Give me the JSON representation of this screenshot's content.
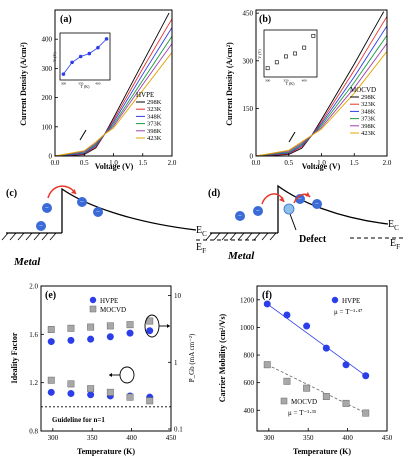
{
  "colors": {
    "hvpe_marker": "#2c3ee8",
    "mocvd_marker": "#a8a8a8",
    "arrow": "#e8392c",
    "electron": "#3a6bd6",
    "defect": "#8cc0e8",
    "curves": [
      "#000000",
      "#e8312a",
      "#2c3ee8",
      "#1a9a3a",
      "#a23fb0",
      "#e0a400"
    ]
  },
  "chart_data": [
    {
      "id": "a",
      "type": "line",
      "panel_label": "(a)",
      "xlabel": "Voltage (V)",
      "ylabel": "Current Density (A/cm²)",
      "xlim": [
        0,
        2.0
      ],
      "ylim": [
        0,
        500
      ],
      "xticks": [
        "0.0",
        "0.5",
        "1.0",
        "1.5",
        "2.0"
      ],
      "yticks": [
        "0",
        "100",
        "200",
        "300",
        "400"
      ],
      "legend_title": "HVPE",
      "series": [
        {
          "name": "298K",
          "x": [
            0,
            0.5,
            0.7,
            0.85,
            1.0,
            1.5,
            1.95
          ],
          "y": [
            0,
            5,
            28,
            75,
            130,
            320,
            490
          ]
        },
        {
          "name": "323K",
          "x": [
            0,
            0.5,
            0.7,
            0.85,
            1.0,
            1.5,
            2.0
          ],
          "y": [
            0,
            7,
            32,
            75,
            122,
            300,
            470
          ]
        },
        {
          "name": "348K",
          "x": [
            0,
            0.5,
            0.7,
            0.85,
            1.0,
            1.5,
            2.0
          ],
          "y": [
            0,
            9,
            36,
            75,
            115,
            280,
            440
          ]
        },
        {
          "name": "373K",
          "x": [
            0,
            0.5,
            0.7,
            0.85,
            1.0,
            1.5,
            2.0
          ],
          "y": [
            0,
            12,
            40,
            75,
            108,
            260,
            410
          ]
        },
        {
          "name": "398K",
          "x": [
            0,
            0.5,
            0.7,
            0.85,
            1.0,
            1.5,
            2.0
          ],
          "y": [
            0,
            15,
            44,
            75,
            102,
            245,
            385
          ]
        },
        {
          "name": "423K",
          "x": [
            0,
            0.5,
            0.7,
            0.85,
            1.0,
            1.5,
            2.0
          ],
          "y": [
            0,
            18,
            48,
            75,
            96,
            225,
            355
          ]
        }
      ],
      "inset": {
        "xlabel": "T (K)",
        "ylabel": "V (V)",
        "x": [
          300,
          325,
          350,
          375,
          400,
          425
        ],
        "y": [
          0.62,
          0.66,
          0.68,
          0.69,
          0.71,
          0.74
        ],
        "xlim": [
          290,
          435
        ],
        "ylim": [
          0.6,
          0.76
        ],
        "xticks": [
          "300",
          "350",
          "400"
        ]
      }
    },
    {
      "id": "b",
      "type": "line",
      "panel_label": "(b)",
      "xlabel": "Voltage (V)",
      "ylabel": "Current Density (A/cm²)",
      "xlim": [
        0,
        2.0
      ],
      "ylim": [
        0,
        460
      ],
      "xticks": [
        "0.0",
        "0.5",
        "1.0",
        "1.5",
        "2.0"
      ],
      "yticks": [
        "0",
        "150",
        "300",
        "450"
      ],
      "legend_title": "MOCVD",
      "series": [
        {
          "name": "298K",
          "x": [
            0,
            0.5,
            0.7,
            0.85,
            1.0,
            1.5,
            1.95
          ],
          "y": [
            0,
            5,
            25,
            65,
            115,
            290,
            455
          ]
        },
        {
          "name": "323K",
          "x": [
            0,
            0.5,
            0.7,
            0.85,
            1.0,
            1.5,
            2.0
          ],
          "y": [
            0,
            7,
            29,
            65,
            108,
            270,
            440
          ]
        },
        {
          "name": "348K",
          "x": [
            0,
            0.5,
            0.7,
            0.85,
            1.0,
            1.5,
            2.0
          ],
          "y": [
            0,
            9,
            33,
            65,
            102,
            250,
            410
          ]
        },
        {
          "name": "373K",
          "x": [
            0,
            0.5,
            0.7,
            0.85,
            1.0,
            1.5,
            2.0
          ],
          "y": [
            0,
            12,
            37,
            65,
            96,
            232,
            380
          ]
        },
        {
          "name": "398K",
          "x": [
            0,
            0.5,
            0.7,
            0.85,
            1.0,
            1.5,
            2.0
          ],
          "y": [
            0,
            15,
            41,
            65,
            90,
            215,
            355
          ]
        },
        {
          "name": "423K",
          "x": [
            0,
            0.5,
            0.7,
            0.85,
            1.0,
            1.5,
            2.0
          ],
          "y": [
            0,
            18,
            45,
            65,
            85,
            198,
            330
          ]
        }
      ],
      "inset": {
        "xlabel": "T (K)",
        "ylabel": "V (V)",
        "x": [
          300,
          325,
          350,
          375,
          400,
          425
        ],
        "y": [
          0.63,
          0.65,
          0.67,
          0.68,
          0.7,
          0.74
        ],
        "xlim": [
          290,
          435
        ],
        "ylim": [
          0.6,
          0.76
        ],
        "xticks": [
          "300",
          "350",
          "400"
        ]
      }
    },
    {
      "id": "e",
      "type": "scatter",
      "panel_label": "(e)",
      "xlabel": "Temperature (K)",
      "ylabel": "Ideality Factor",
      "ylabel_right": "P_Gb (mA cm⁻²)",
      "xlim": [
        285,
        450
      ],
      "ylim": [
        0.8,
        2.0
      ],
      "xticks": [
        "300",
        "350",
        "400",
        "450"
      ],
      "yticks": [
        "0.8",
        "1.2",
        "1.6",
        "2.0"
      ],
      "yticks_right": [
        "0.1",
        "1",
        "10"
      ],
      "legend": [
        "HVPE",
        "MOCVD"
      ],
      "guideline_label": "Guideline for n=1",
      "series": [
        {
          "name": "HVPE",
          "marker": "circle",
          "x": [
            298,
            323,
            348,
            373,
            398,
            423
          ],
          "y": [
            1.54,
            1.55,
            1.56,
            1.58,
            1.61,
            1.63
          ]
        },
        {
          "name": "MOCVD",
          "marker": "square",
          "x": [
            298,
            323,
            348,
            373,
            398,
            423
          ],
          "y": [
            1.64,
            1.65,
            1.66,
            1.67,
            1.68,
            1.71
          ]
        },
        {
          "name": "HVPE",
          "marker": "circle",
          "x": [
            298,
            323,
            348,
            373,
            398,
            423
          ],
          "y": [
            1.12,
            1.11,
            1.1,
            1.09,
            1.09,
            1.08
          ]
        },
        {
          "name": "MOCVD",
          "marker": "square",
          "x": [
            298,
            323,
            348,
            373,
            398,
            423
          ],
          "y": [
            1.22,
            1.19,
            1.15,
            1.12,
            1.08,
            1.05
          ]
        }
      ]
    },
    {
      "id": "f",
      "type": "scatter",
      "panel_label": "(f)",
      "xlabel": "Temperature (K)",
      "ylabel": "Carrier Mobility (cm²/Vs)",
      "xlim": [
        285,
        450
      ],
      "ylim": [
        250,
        1300
      ],
      "xticks": [
        "300",
        "350",
        "400",
        "450"
      ],
      "yticks": [
        "400",
        "600",
        "800",
        "1000",
        "1200"
      ],
      "series": [
        {
          "name": "HVPE",
          "marker": "circle",
          "x": [
            298,
            323,
            348,
            373,
            398,
            423
          ],
          "y": [
            1170,
            1090,
            1010,
            850,
            730,
            650
          ]
        },
        {
          "name": "MOCVD",
          "marker": "square",
          "x": [
            298,
            323,
            348,
            373,
            398,
            423
          ],
          "y": [
            730,
            610,
            560,
            500,
            450,
            380
          ]
        }
      ],
      "fit_labels": [
        "μ = T⁻¹·⁴⁷",
        "μ = T⁻¹·³⁵"
      ]
    }
  ],
  "diagrams": {
    "c": {
      "panel_label": "(c)",
      "ec": "E",
      "ec_sub": "C",
      "ef": "E",
      "ef_sub": "F",
      "metal": "Metal"
    },
    "d": {
      "panel_label": "(d)",
      "ec": "E",
      "ec_sub": "C",
      "ef": "E",
      "ef_sub": "F",
      "metal": "Metal",
      "defect": "Defect"
    }
  }
}
